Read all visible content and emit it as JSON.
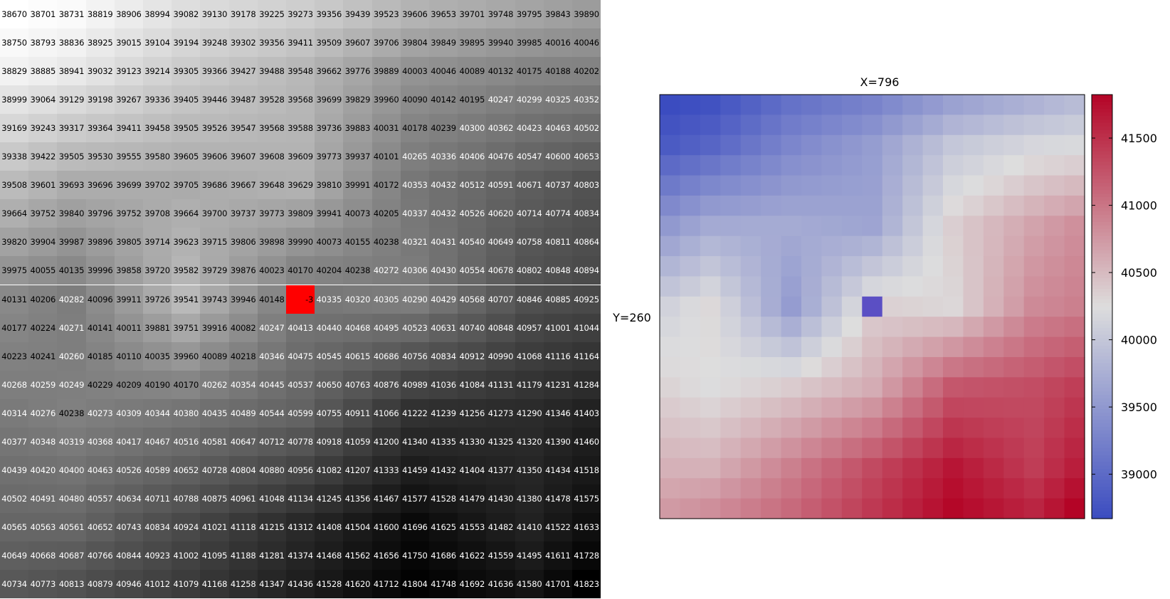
{
  "chart_data": [
    {
      "type": "table",
      "rows": [
        [
          38670,
          38701,
          38731,
          38819,
          38906,
          38994,
          39082,
          39130,
          39178,
          39225,
          39273,
          39356,
          39439,
          39523,
          39606,
          39653,
          39701,
          39748,
          39795,
          39843,
          39890
        ],
        [
          38750,
          38793,
          38836,
          38925,
          39015,
          39104,
          39194,
          39248,
          39302,
          39356,
          39411,
          39509,
          39607,
          39706,
          39804,
          39849,
          39895,
          39940,
          39985,
          40016,
          40046
        ],
        [
          38829,
          38885,
          38941,
          39032,
          39123,
          39214,
          39305,
          39366,
          39427,
          39488,
          39548,
          39662,
          39776,
          39889,
          40003,
          40046,
          40089,
          40132,
          40175,
          40188,
          40202
        ],
        [
          38999,
          39064,
          39129,
          39198,
          39267,
          39336,
          39405,
          39446,
          39487,
          39528,
          39568,
          39699,
          39829,
          39960,
          40090,
          40142,
          40195,
          40247,
          40299,
          40325,
          40352
        ],
        [
          39169,
          39243,
          39317,
          39364,
          39411,
          39458,
          39505,
          39526,
          39547,
          39568,
          39588,
          39736,
          39883,
          40031,
          40178,
          40239,
          40300,
          40362,
          40423,
          40463,
          40502
        ],
        [
          39338,
          39422,
          39505,
          39530,
          39555,
          39580,
          39605,
          39606,
          39607,
          39608,
          39609,
          39773,
          39937,
          40101,
          40265,
          40336,
          40406,
          40476,
          40547,
          40600,
          40653
        ],
        [
          39508,
          39601,
          39693,
          39696,
          39699,
          39702,
          39705,
          39686,
          39667,
          39648,
          39629,
          39810,
          39991,
          40172,
          40353,
          40432,
          40512,
          40591,
          40671,
          40737,
          40803
        ],
        [
          39664,
          39752,
          39840,
          39796,
          39752,
          39708,
          39664,
          39700,
          39737,
          39773,
          39809,
          39941,
          40073,
          40205,
          40337,
          40432,
          40526,
          40620,
          40714,
          40774,
          40834
        ],
        [
          39820,
          39904,
          39987,
          39896,
          39805,
          39714,
          39623,
          39715,
          39806,
          39898,
          39990,
          40073,
          40155,
          40238,
          40321,
          40431,
          40540,
          40649,
          40758,
          40811,
          40864
        ],
        [
          39975,
          40055,
          40135,
          39996,
          39858,
          39720,
          39582,
          39729,
          39876,
          40023,
          40170,
          40204,
          40238,
          40272,
          40306,
          40430,
          40554,
          40678,
          40802,
          40848,
          40894
        ],
        [
          40131,
          40206,
          40282,
          40096,
          39911,
          39726,
          39541,
          39743,
          39946,
          40148,
          -3,
          40335,
          40320,
          40305,
          40290,
          40429,
          40568,
          40707,
          40846,
          40885,
          40925
        ],
        [
          40177,
          40224,
          40271,
          40141,
          40011,
          39881,
          39751,
          39916,
          40082,
          40247,
          40413,
          40440,
          40468,
          40495,
          40523,
          40631,
          40740,
          40848,
          40957,
          41001,
          41044
        ],
        [
          40223,
          40241,
          40260,
          40185,
          40110,
          40035,
          39960,
          40089,
          40218,
          40346,
          40475,
          40545,
          40615,
          40686,
          40756,
          40834,
          40912,
          40990,
          41068,
          41116,
          41164
        ],
        [
          40268,
          40259,
          40249,
          40229,
          40209,
          40190,
          40170,
          40262,
          40354,
          40445,
          40537,
          40650,
          40763,
          40876,
          40989,
          41036,
          41084,
          41131,
          41179,
          41231,
          41284
        ],
        [
          40314,
          40276,
          40238,
          40273,
          40309,
          40344,
          40380,
          40435,
          40489,
          40544,
          40599,
          40755,
          40911,
          41066,
          41222,
          41239,
          41256,
          41273,
          41290,
          41346,
          41403
        ],
        [
          40377,
          40348,
          40319,
          40368,
          40417,
          40467,
          40516,
          40581,
          40647,
          40712,
          40778,
          40918,
          41059,
          41200,
          41340,
          41335,
          41330,
          41325,
          41320,
          41390,
          41460
        ],
        [
          40439,
          40420,
          40400,
          40463,
          40526,
          40589,
          40652,
          40728,
          40804,
          40880,
          40956,
          41082,
          41207,
          41333,
          41459,
          41432,
          41404,
          41377,
          41350,
          41434,
          41518
        ],
        [
          40502,
          40491,
          40480,
          40557,
          40634,
          40711,
          40788,
          40875,
          40961,
          41048,
          41134,
          41245,
          41356,
          41467,
          41577,
          41528,
          41479,
          41430,
          41380,
          41478,
          41575
        ],
        [
          40565,
          40563,
          40561,
          40652,
          40743,
          40834,
          40924,
          41021,
          41118,
          41215,
          41312,
          41408,
          41504,
          41600,
          41696,
          41625,
          41553,
          41482,
          41410,
          41522,
          41633
        ],
        [
          40649,
          40668,
          40687,
          40766,
          40844,
          40923,
          41002,
          41095,
          41188,
          41281,
          41374,
          41468,
          41562,
          41656,
          41750,
          41686,
          41622,
          41559,
          41495,
          41611,
          41728
        ],
        [
          40734,
          40773,
          40813,
          40879,
          40946,
          41012,
          41079,
          41168,
          41258,
          41347,
          41436,
          41528,
          41620,
          41712,
          41804,
          41748,
          41692,
          41636,
          41580,
          41701,
          41823
        ]
      ],
      "highlight": {
        "row": 10,
        "col": 10,
        "color": "#ff0000"
      },
      "grayscale_range": [
        38670,
        41823
      ]
    },
    {
      "type": "heatmap",
      "title": "X=796",
      "ylabel": "Y=260",
      "colormap": "coolwarm",
      "colorbar_range": [
        38670,
        41823
      ],
      "colorbar_ticks": [
        "39000",
        "39500",
        "40000",
        "40500",
        "41000",
        "41500"
      ],
      "marker": {
        "row": 10,
        "col": 10,
        "color": "#5b4fc4"
      },
      "highlight_color": "#ff0000",
      "low_color": "#3b4cc0",
      "mid_color": "#dddddd",
      "high_color": "#b40426"
    }
  ]
}
